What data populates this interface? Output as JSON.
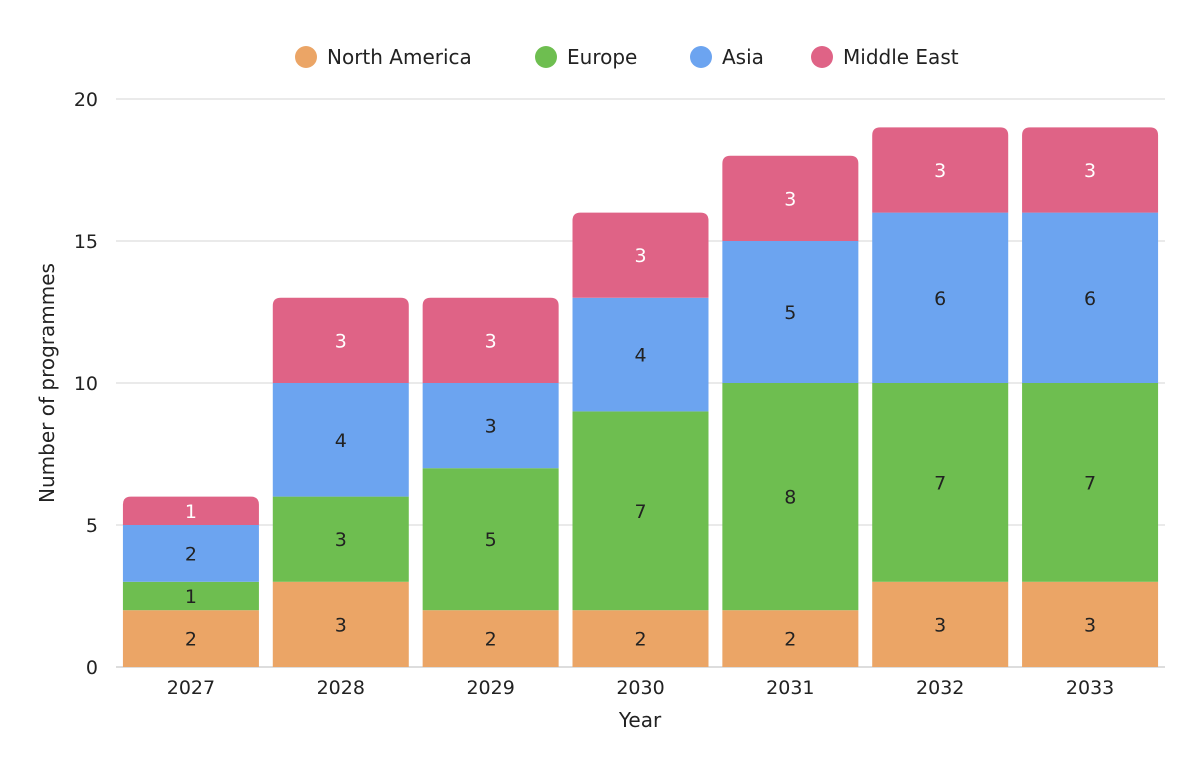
{
  "chart_data": {
    "type": "bar",
    "stacked": true,
    "title": "",
    "xlabel": "Year",
    "ylabel": "Number of programmes",
    "ylim": [
      0,
      20
    ],
    "yticks": [
      0,
      5,
      10,
      15,
      20
    ],
    "grid": true,
    "legend_position": "top-center",
    "categories": [
      "2027",
      "2028",
      "2029",
      "2030",
      "2031",
      "2032",
      "2033"
    ],
    "series": [
      {
        "name": "North America",
        "color": "#EBA566",
        "label_color": "#222222",
        "values": [
          2,
          3,
          2,
          2,
          2,
          3,
          3
        ]
      },
      {
        "name": "Europe",
        "color": "#6EBE50",
        "label_color": "#222222",
        "values": [
          1,
          3,
          5,
          7,
          8,
          7,
          7
        ]
      },
      {
        "name": "Asia",
        "color": "#6CA4F0",
        "label_color": "#222222",
        "values": [
          2,
          4,
          3,
          4,
          5,
          6,
          6
        ]
      },
      {
        "name": "Middle East",
        "color": "#DF6386",
        "label_color": "#FFFFFF",
        "values": [
          1,
          3,
          3,
          3,
          3,
          3,
          3
        ]
      }
    ]
  }
}
